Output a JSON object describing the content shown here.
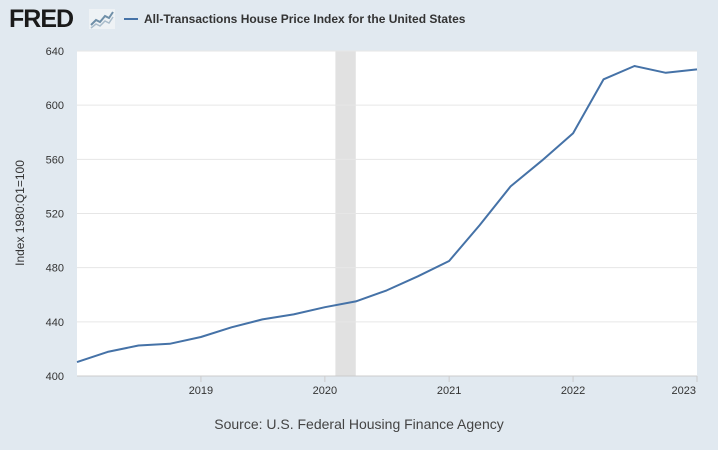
{
  "header": {
    "logo_text": "FRED",
    "logo_icon": "trend-chart-icon"
  },
  "colors": {
    "page_background": "#e1e9f0",
    "plot_background": "#ffffff",
    "series_line": "#4572a7",
    "recession_band": "#e1e1e1",
    "gridline": "#e6e6e6"
  },
  "chart_data": {
    "type": "line",
    "title": "",
    "xlabel": "",
    "ylabel": "Index 1980:Q1=100",
    "ylim": [
      400,
      640
    ],
    "yticks": [
      400,
      440,
      480,
      520,
      560,
      600,
      640
    ],
    "xlim": [
      "2018-01-01",
      "2023-01-01"
    ],
    "xticks": [
      {
        "label": "2019",
        "date": "2019-01-01"
      },
      {
        "label": "2020",
        "date": "2020-01-01"
      },
      {
        "label": "2021",
        "date": "2021-01-01"
      },
      {
        "label": "2022",
        "date": "2022-01-01"
      },
      {
        "label": "2023",
        "date": "2023-01-01"
      }
    ],
    "grid": true,
    "legend": "top-left",
    "recessions": [
      {
        "start": "2020-02-01",
        "end": "2020-04-01"
      }
    ],
    "series": [
      {
        "name": "All-Transactions House Price Index for the United States",
        "x": [
          "2018-01-01",
          "2018-04-01",
          "2018-07-01",
          "2018-10-01",
          "2019-01-01",
          "2019-04-01",
          "2019-07-01",
          "2019-10-01",
          "2020-01-01",
          "2020-04-01",
          "2020-07-01",
          "2020-10-01",
          "2021-01-01",
          "2021-04-01",
          "2021-07-01",
          "2021-10-01",
          "2022-01-01",
          "2022-04-01",
          "2022-07-01",
          "2022-10-01",
          "2023-01-01"
        ],
        "values": [
          410.3,
          417.8,
          422.5,
          423.8,
          428.8,
          436.0,
          441.8,
          445.5,
          450.8,
          455.1,
          463.2,
          473.6,
          484.9,
          511.4,
          540.0,
          559.0,
          579.3,
          619.1,
          628.9,
          623.9,
          626.4
        ]
      }
    ],
    "source": "Source: U.S. Federal Housing Finance Agency"
  }
}
